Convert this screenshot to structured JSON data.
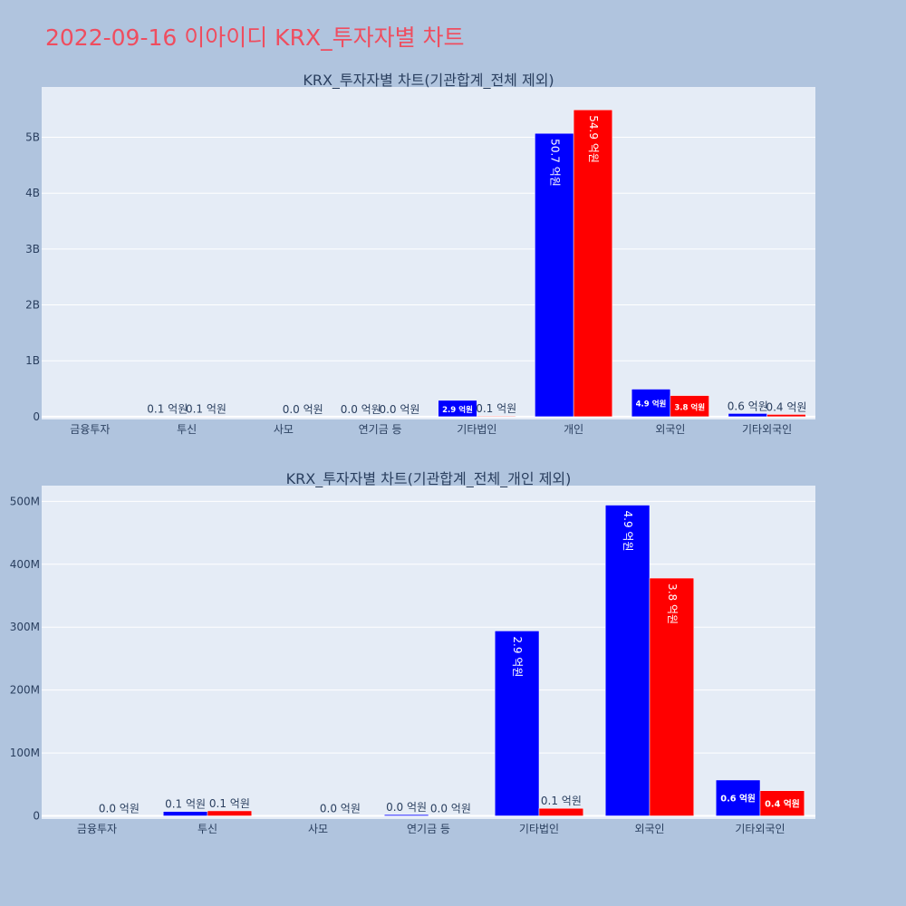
{
  "page_title": "2022-09-16 이아이디 KRX_투자자별 차트",
  "chart_data": [
    {
      "type": "bar",
      "title": "KRX_투자자별 차트(기관합계_전체 제외)",
      "categories": [
        "금융투자",
        "투신",
        "사모",
        "연기금 등",
        "기타법인",
        "개인",
        "외국인",
        "기타외국인"
      ],
      "ylim": [
        -50000000,
        5900000000
      ],
      "yticks": [
        {
          "value": 0,
          "label": "0"
        },
        {
          "value": 1000000000,
          "label": "1B"
        },
        {
          "value": 2000000000,
          "label": "2B"
        },
        {
          "value": 3000000000,
          "label": "3B"
        },
        {
          "value": 4000000000,
          "label": "4B"
        },
        {
          "value": 5000000000,
          "label": "5B"
        }
      ],
      "grid": true,
      "series": [
        {
          "color": "#0000ff",
          "values": [
            0,
            6000000,
            0,
            1500000,
            292000000,
            5070000000,
            493000000,
            57000000
          ],
          "labels": [
            "",
            "0.1 억원",
            "",
            "0.0 억원",
            "2.9 억원",
            "50.7 억원",
            "4.9 억원",
            "0.6 억원"
          ]
        },
        {
          "color": "#ff0000",
          "values": [
            0,
            8000000,
            0,
            0,
            12000000,
            5490000000,
            378000000,
            40000000
          ],
          "labels": [
            "",
            "0.1 억원",
            "0.0 억원",
            "0.0 억원",
            "0.1 억원",
            "54.9 억원",
            "3.8 억원",
            "0.4 억원"
          ]
        }
      ]
    },
    {
      "type": "bar",
      "title": "KRX_투자자별 차트(기관합계_전체_개인 제외)",
      "categories": [
        "금융투자",
        "투신",
        "사모",
        "연기금 등",
        "기타법인",
        "외국인",
        "기타외국인"
      ],
      "ylim": [
        -5000000,
        525000000
      ],
      "yticks": [
        {
          "value": 0,
          "label": "0"
        },
        {
          "value": 100000000,
          "label": "100M"
        },
        {
          "value": 200000000,
          "label": "200M"
        },
        {
          "value": 300000000,
          "label": "300M"
        },
        {
          "value": 400000000,
          "label": "400M"
        },
        {
          "value": 500000000,
          "label": "500M"
        }
      ],
      "grid": true,
      "series": [
        {
          "color": "#0000ff",
          "values": [
            0,
            7000000,
            0,
            2000000,
            294000000,
            494000000,
            57000000
          ],
          "labels": [
            "",
            "0.1 억원",
            "",
            "0.0 억원",
            "2.9 억원",
            "4.9 억원",
            "0.6 억원"
          ]
        },
        {
          "color": "#ff0000",
          "values": [
            0,
            8000000,
            0,
            0,
            12000000,
            378000000,
            40000000
          ],
          "labels": [
            "0.0 억원",
            "0.1 억원",
            "0.0 억원",
            "0.0 억원",
            "0.1 억원",
            "3.8 억원",
            "0.4 억원"
          ]
        }
      ]
    }
  ]
}
